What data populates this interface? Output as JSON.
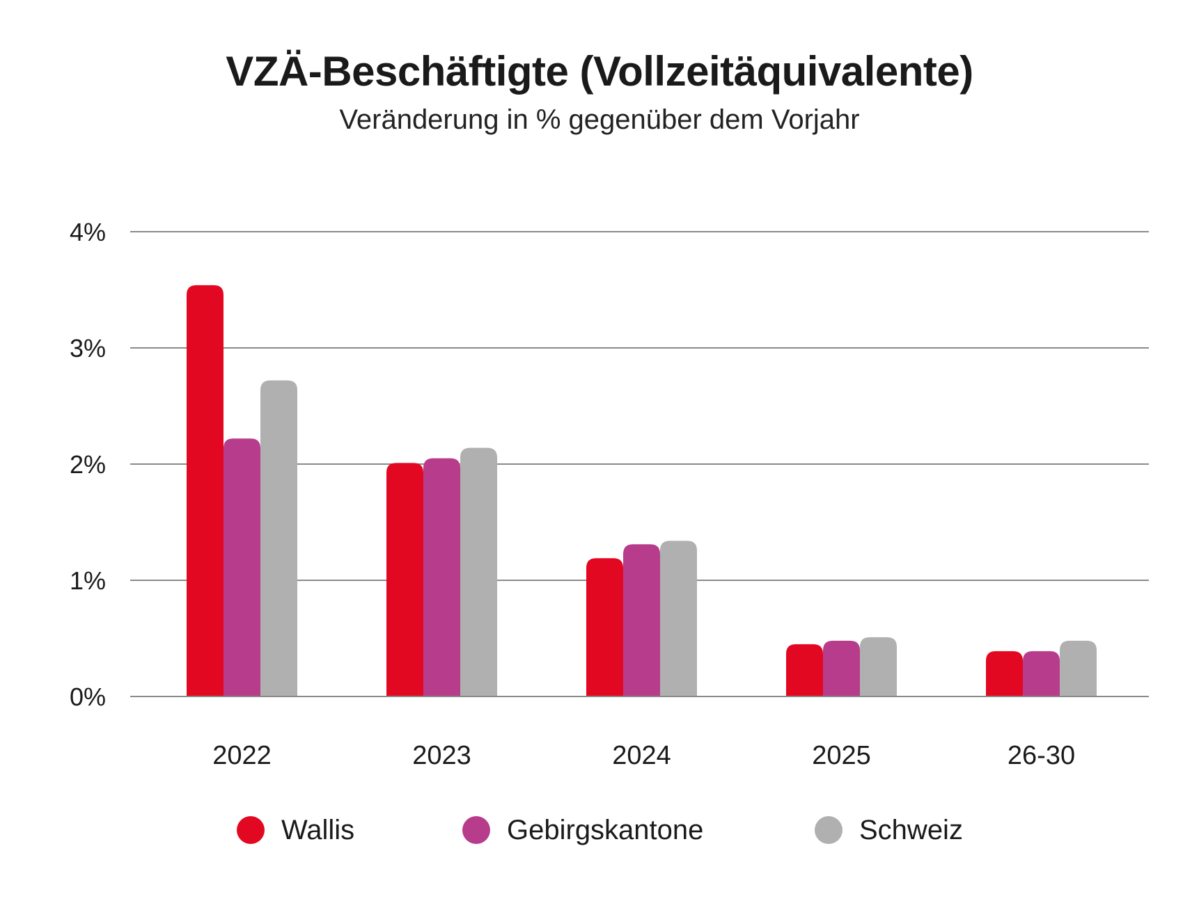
{
  "chart_data": {
    "type": "bar",
    "title": "VZÄ-Beschäftigte (Vollzeitäquivalente)",
    "subtitle": "Veränderung in % gegenüber dem Vorjahr",
    "categories": [
      "2022",
      "2023",
      "2024",
      "2025",
      "26-30"
    ],
    "series": [
      {
        "name": "Wallis",
        "color": "#e30821",
        "values": [
          3.54,
          2.01,
          1.19,
          0.45,
          0.39
        ]
      },
      {
        "name": "Gebirgskantone",
        "color": "#b83c8c",
        "values": [
          2.22,
          2.05,
          1.31,
          0.48,
          0.39
        ]
      },
      {
        "name": "Schweiz",
        "color": "#b0b0b0",
        "values": [
          2.72,
          2.14,
          1.34,
          0.51,
          0.48
        ]
      }
    ],
    "yticks": [
      "0%",
      "1%",
      "2%",
      "3%",
      "4%"
    ],
    "ylim": [
      0,
      4
    ],
    "grid": true,
    "legend_position": "bottom"
  }
}
